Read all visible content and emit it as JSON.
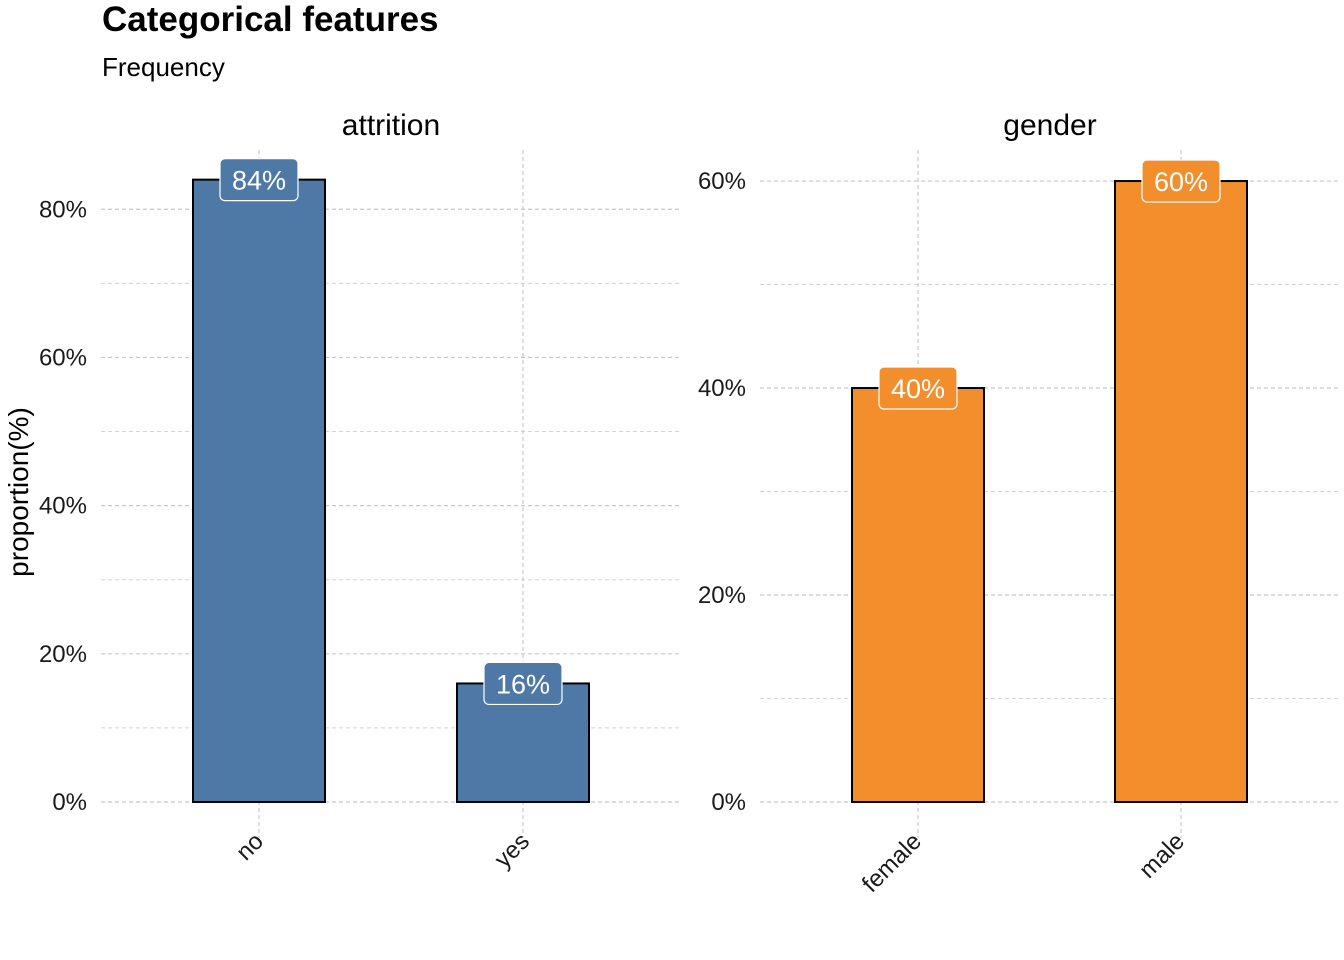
{
  "title": "Categorical features",
  "subtitle": "Frequency",
  "chart_data": {
    "type": "bar",
    "ylabel": "proportion(%)",
    "grid": true,
    "panels": [
      {
        "title": "attrition",
        "categories": [
          "no",
          "yes"
        ],
        "values": [
          84,
          16
        ],
        "labels": [
          "84%",
          "16%"
        ],
        "ylim": [
          0,
          88
        ],
        "yticks": [
          0,
          20,
          40,
          60,
          80
        ],
        "ytick_labels": [
          "0%",
          "20%",
          "40%",
          "60%",
          "80%"
        ],
        "color": "#4E79A7"
      },
      {
        "title": "gender",
        "categories": [
          "female",
          "male"
        ],
        "values": [
          40,
          60
        ],
        "labels": [
          "40%",
          "60%"
        ],
        "ylim": [
          0,
          63
        ],
        "yticks": [
          0,
          20,
          40,
          60
        ],
        "ytick_labels": [
          "0%",
          "20%",
          "40%",
          "60%"
        ],
        "color": "#F28E2B"
      }
    ]
  }
}
